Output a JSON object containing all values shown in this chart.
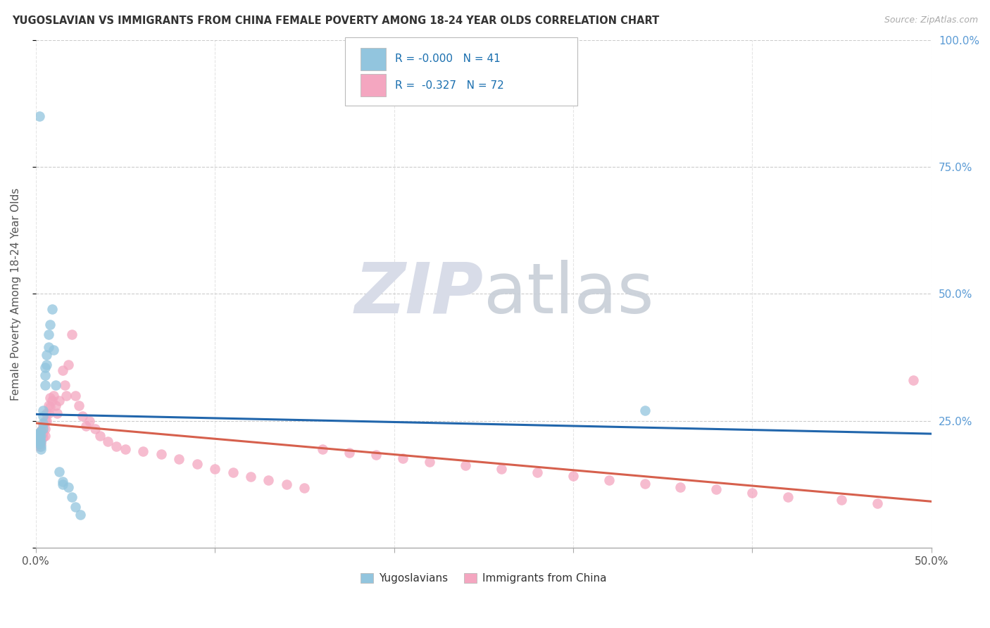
{
  "title": "YUGOSLAVIAN VS IMMIGRANTS FROM CHINA FEMALE POVERTY AMONG 18-24 YEAR OLDS CORRELATION CHART",
  "source": "Source: ZipAtlas.com",
  "ylabel": "Female Poverty Among 18-24 Year Olds",
  "xlim": [
    0.0,
    0.5
  ],
  "ylim": [
    0.0,
    1.0
  ],
  "legend_label1": "Yugoslavians",
  "legend_label2": "Immigrants from China",
  "R1": "-0.000",
  "N1": "41",
  "R2": "-0.327",
  "N2": "72",
  "color1": "#92c5de",
  "color2": "#f4a6c0",
  "line_color1": "#2166ac",
  "line_color2": "#d6604d",
  "watermark_color": "#d8dce8",
  "background_color": "#ffffff",
  "grid_color": "#cccccc",
  "yugoslavian_x": [
    0.001,
    0.001,
    0.001,
    0.001,
    0.002,
    0.002,
    0.002,
    0.002,
    0.002,
    0.002,
    0.002,
    0.002,
    0.003,
    0.003,
    0.003,
    0.003,
    0.003,
    0.004,
    0.004,
    0.004,
    0.004,
    0.005,
    0.005,
    0.005,
    0.006,
    0.006,
    0.007,
    0.007,
    0.008,
    0.009,
    0.01,
    0.011,
    0.013,
    0.015,
    0.015,
    0.018,
    0.02,
    0.022,
    0.025,
    0.34,
    0.002
  ],
  "yugoslavian_y": [
    0.22,
    0.215,
    0.225,
    0.218,
    0.22,
    0.215,
    0.21,
    0.205,
    0.225,
    0.218,
    0.215,
    0.21,
    0.23,
    0.22,
    0.21,
    0.2,
    0.195,
    0.27,
    0.26,
    0.245,
    0.235,
    0.355,
    0.34,
    0.32,
    0.38,
    0.36,
    0.42,
    0.395,
    0.44,
    0.47,
    0.39,
    0.32,
    0.15,
    0.13,
    0.125,
    0.12,
    0.1,
    0.08,
    0.065,
    0.27,
    0.85
  ],
  "china_x": [
    0.001,
    0.001,
    0.001,
    0.002,
    0.002,
    0.002,
    0.002,
    0.002,
    0.003,
    0.003,
    0.003,
    0.003,
    0.004,
    0.004,
    0.004,
    0.005,
    0.005,
    0.005,
    0.006,
    0.006,
    0.007,
    0.007,
    0.008,
    0.008,
    0.009,
    0.01,
    0.011,
    0.012,
    0.013,
    0.015,
    0.016,
    0.017,
    0.018,
    0.02,
    0.022,
    0.024,
    0.026,
    0.028,
    0.03,
    0.033,
    0.036,
    0.04,
    0.045,
    0.05,
    0.06,
    0.07,
    0.08,
    0.09,
    0.1,
    0.11,
    0.12,
    0.13,
    0.14,
    0.15,
    0.16,
    0.175,
    0.19,
    0.205,
    0.22,
    0.24,
    0.26,
    0.28,
    0.3,
    0.32,
    0.34,
    0.36,
    0.38,
    0.4,
    0.42,
    0.45,
    0.47,
    0.49
  ],
  "china_y": [
    0.22,
    0.215,
    0.21,
    0.225,
    0.218,
    0.215,
    0.205,
    0.2,
    0.23,
    0.222,
    0.215,
    0.205,
    0.24,
    0.228,
    0.218,
    0.25,
    0.235,
    0.22,
    0.265,
    0.25,
    0.28,
    0.265,
    0.295,
    0.278,
    0.29,
    0.3,
    0.28,
    0.265,
    0.29,
    0.35,
    0.32,
    0.3,
    0.36,
    0.42,
    0.3,
    0.28,
    0.26,
    0.24,
    0.25,
    0.235,
    0.22,
    0.21,
    0.2,
    0.195,
    0.19,
    0.185,
    0.175,
    0.165,
    0.155,
    0.148,
    0.14,
    0.133,
    0.125,
    0.118,
    0.195,
    0.188,
    0.183,
    0.176,
    0.17,
    0.163,
    0.156,
    0.148,
    0.141,
    0.134,
    0.127,
    0.12,
    0.115,
    0.108,
    0.1,
    0.094,
    0.088,
    0.33
  ]
}
